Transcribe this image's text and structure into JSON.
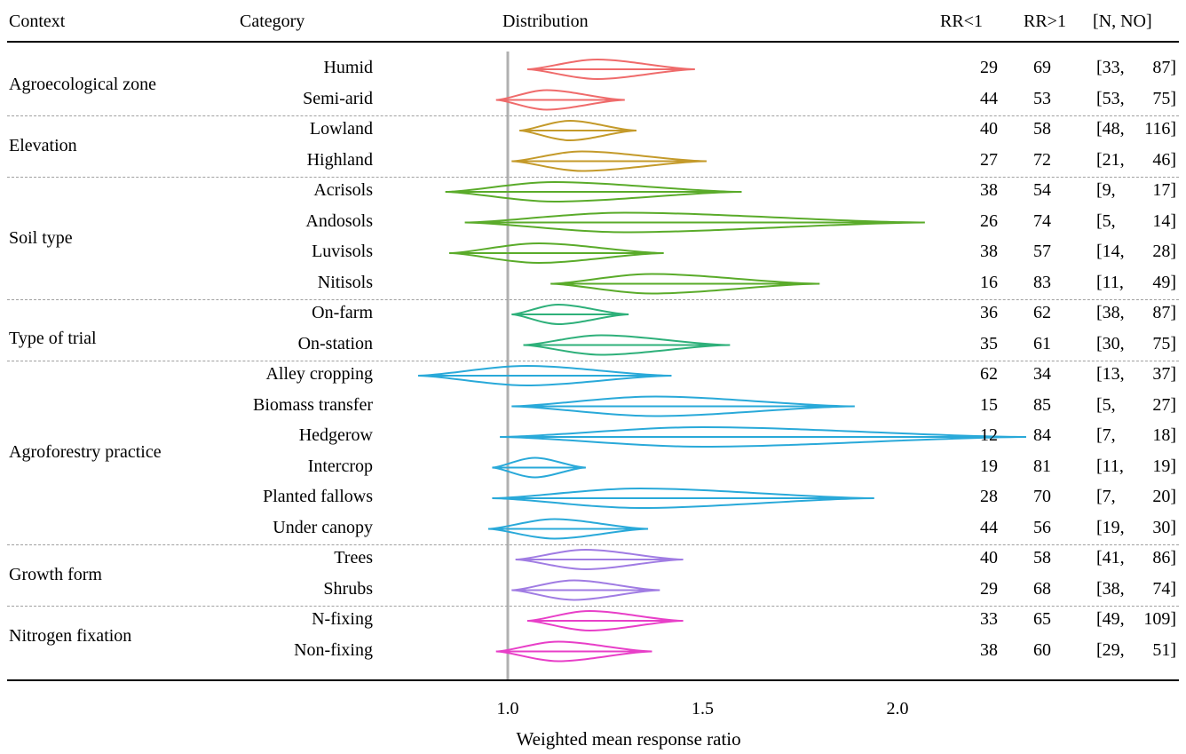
{
  "header": {
    "context": "Context",
    "category": "Category",
    "distribution": "Distribution",
    "rr_lt1": "RR<1",
    "rr_gt1": "RR>1",
    "n_no": "[N, NO]"
  },
  "chart_data": {
    "type": "violin",
    "xlabel": "Weighted mean response ratio",
    "xticks": [
      "1.0",
      "1.5",
      "2.0"
    ],
    "xlim": [
      0.77,
      2.33
    ],
    "reference_line": 1.0,
    "groups": [
      {
        "context": "Agroecological zone",
        "color": "#ef6b6b",
        "rows": [
          {
            "category": "Humid",
            "min": 1.05,
            "max": 1.48,
            "peak": 1.23,
            "rr_lt1": "29",
            "rr_gt1": "69",
            "n": "33",
            "no": "87"
          },
          {
            "category": "Semi-arid",
            "min": 0.97,
            "max": 1.3,
            "peak": 1.1,
            "rr_lt1": "44",
            "rr_gt1": "53",
            "n": "53",
            "no": "75"
          }
        ]
      },
      {
        "context": "Elevation",
        "color": "#c49a2a",
        "rows": [
          {
            "category": "Lowland",
            "min": 1.03,
            "max": 1.33,
            "peak": 1.16,
            "rr_lt1": "40",
            "rr_gt1": "58",
            "n": "48",
            "no": "116"
          },
          {
            "category": "Highland",
            "min": 1.01,
            "max": 1.51,
            "peak": 1.19,
            "rr_lt1": "27",
            "rr_gt1": "72",
            "n": "21",
            "no": "46"
          }
        ]
      },
      {
        "context": "Soil type",
        "color": "#5aab2a",
        "rows": [
          {
            "category": "Acrisols",
            "min": 0.84,
            "max": 1.6,
            "peak": 1.12,
            "rr_lt1": "38",
            "rr_gt1": "54",
            "n": "9",
            "no": "17"
          },
          {
            "category": "Andosols",
            "min": 0.89,
            "max": 2.07,
            "peak": 1.3,
            "rr_lt1": "26",
            "rr_gt1": "74",
            "n": "5",
            "no": "14"
          },
          {
            "category": "Luvisols",
            "min": 0.85,
            "max": 1.4,
            "peak": 1.08,
            "rr_lt1": "38",
            "rr_gt1": "57",
            "n": "14",
            "no": "28"
          },
          {
            "category": "Nitisols",
            "min": 1.11,
            "max": 1.8,
            "peak": 1.37,
            "rr_lt1": "16",
            "rr_gt1": "83",
            "n": "11",
            "no": "49"
          }
        ]
      },
      {
        "context": "Type of trial",
        "color": "#2eb07a",
        "rows": [
          {
            "category": "On-farm",
            "min": 1.01,
            "max": 1.31,
            "peak": 1.13,
            "rr_lt1": "36",
            "rr_gt1": "62",
            "n": "38",
            "no": "87"
          },
          {
            "category": "On-station",
            "min": 1.04,
            "max": 1.57,
            "peak": 1.24,
            "rr_lt1": "35",
            "rr_gt1": "61",
            "n": "30",
            "no": "75"
          }
        ]
      },
      {
        "context": "Agroforestry practice",
        "color": "#29a9d9",
        "rows": [
          {
            "category": "Alley cropping",
            "min": 0.77,
            "max": 1.42,
            "peak": 1.05,
            "rr_lt1": "62",
            "rr_gt1": "34",
            "n": "13",
            "no": "37"
          },
          {
            "category": "Biomass transfer",
            "min": 1.01,
            "max": 1.89,
            "peak": 1.38,
            "rr_lt1": "15",
            "rr_gt1": "85",
            "n": "5",
            "no": "27"
          },
          {
            "category": "Hedgerow",
            "min": 0.98,
            "max": 2.33,
            "peak": 1.5,
            "rr_lt1": "12",
            "rr_gt1": "84",
            "n": "7",
            "no": "18"
          },
          {
            "category": "Intercrop",
            "min": 0.96,
            "max": 1.2,
            "peak": 1.07,
            "rr_lt1": "19",
            "rr_gt1": "81",
            "n": "11",
            "no": "19"
          },
          {
            "category": "Planted fallows",
            "min": 0.96,
            "max": 1.94,
            "peak": 1.34,
            "rr_lt1": "28",
            "rr_gt1": "70",
            "n": "7",
            "no": "20"
          },
          {
            "category": "Under canopy",
            "min": 0.95,
            "max": 1.36,
            "peak": 1.12,
            "rr_lt1": "44",
            "rr_gt1": "56",
            "n": "19",
            "no": "30"
          }
        ]
      },
      {
        "context": "Growth form",
        "color": "#a07ce3",
        "rows": [
          {
            "category": "Trees",
            "min": 1.02,
            "max": 1.45,
            "peak": 1.2,
            "rr_lt1": "40",
            "rr_gt1": "58",
            "n": "41",
            "no": "86"
          },
          {
            "category": "Shrubs",
            "min": 1.01,
            "max": 1.39,
            "peak": 1.17,
            "rr_lt1": "29",
            "rr_gt1": "68",
            "n": "38",
            "no": "74"
          }
        ]
      },
      {
        "context": "Nitrogen fixation",
        "color": "#e83fc8",
        "rows": [
          {
            "category": "N-fixing",
            "min": 1.05,
            "max": 1.45,
            "peak": 1.21,
            "rr_lt1": "33",
            "rr_gt1": "65",
            "n": "49",
            "no": "109"
          },
          {
            "category": "Non-fixing",
            "min": 0.97,
            "max": 1.37,
            "peak": 1.13,
            "rr_lt1": "38",
            "rr_gt1": "60",
            "n": "29",
            "no": "51"
          }
        ]
      }
    ]
  }
}
